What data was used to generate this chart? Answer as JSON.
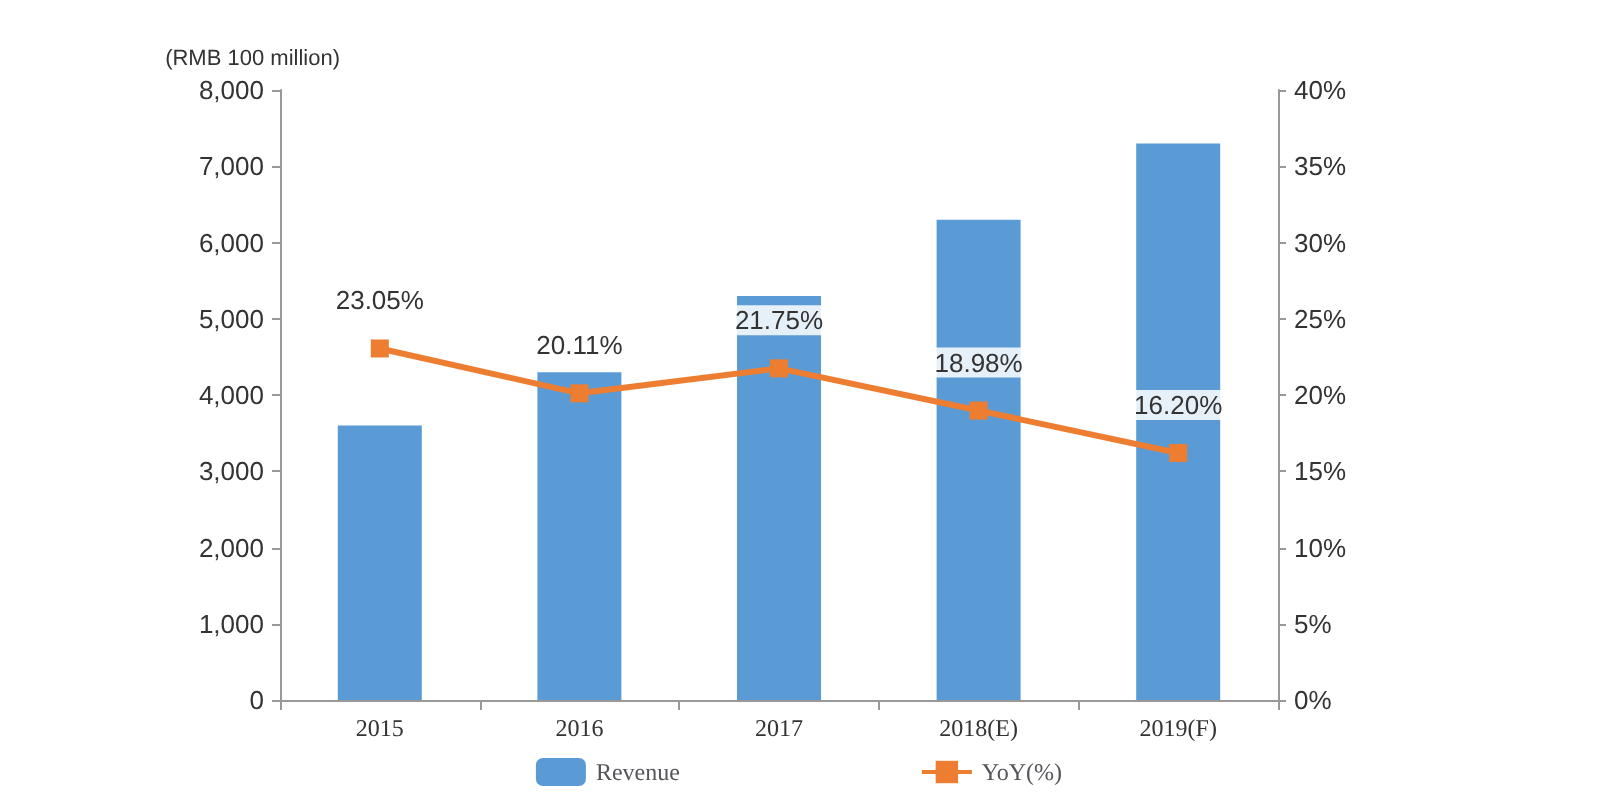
{
  "chart_data": {
    "type": "bar",
    "ylabel": "(RMB 100 million)",
    "categories": [
      "2015",
      "2016",
      "2017",
      "2018(E)",
      "2019(F)"
    ],
    "series": [
      {
        "name": "Revenue",
        "color": "#5b9bd5",
        "values": [
          3600,
          4300,
          5300,
          6300,
          7300
        ]
      },
      {
        "name": "YoY(%)",
        "type": "line",
        "axis": "y2",
        "color": "#ed7d31",
        "marker": "square",
        "values": [
          23.05,
          20.11,
          21.75,
          18.98,
          16.2
        ],
        "value_labels": [
          "23.05%",
          "20.11%",
          "21.75%",
          "18.98%",
          "16.20%"
        ]
      }
    ],
    "ylim": [
      0,
      8000
    ],
    "yticks": [
      0,
      {
        "value": 1000,
        "label": "1,000"
      },
      {
        "value": 2000,
        "label": "2,000"
      },
      {
        "value": 3000,
        "label": "3,000"
      },
      {
        "value": 4000,
        "label": "4,000"
      },
      {
        "value": 5000,
        "label": "5,000"
      },
      {
        "value": 6000,
        "label": "6,000"
      },
      {
        "value": 7000,
        "label": "7,000"
      },
      {
        "value": 8000,
        "label": "8,000"
      }
    ],
    "y2lim": [
      0,
      40
    ],
    "y2ticks": [
      {
        "value": 0,
        "label": "0%"
      },
      {
        "value": 5,
        "label": "5%"
      },
      {
        "value": 10,
        "label": "10%"
      },
      {
        "value": 15,
        "label": "15%"
      },
      {
        "value": 20,
        "label": "20%"
      },
      {
        "value": 25,
        "label": "25%"
      },
      {
        "value": 30,
        "label": "30%"
      },
      {
        "value": 35,
        "label": "35%"
      },
      {
        "value": 40,
        "label": "40%"
      }
    ],
    "grid": false,
    "legend": "bottom"
  }
}
